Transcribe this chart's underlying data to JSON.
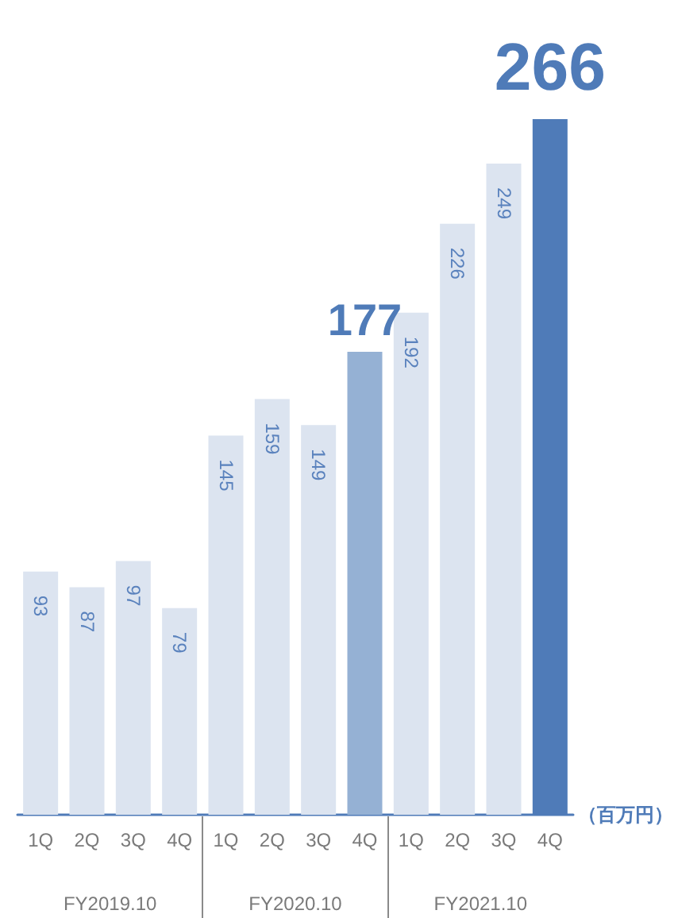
{
  "chart_data": {
    "type": "bar",
    "categories": [
      "1Q",
      "2Q",
      "3Q",
      "4Q",
      "1Q",
      "2Q",
      "3Q",
      "4Q",
      "1Q",
      "2Q",
      "3Q",
      "4Q"
    ],
    "values": [
      93,
      87,
      97,
      79,
      145,
      159,
      149,
      177,
      192,
      226,
      249,
      266
    ],
    "colors": [
      "#dce4f0",
      "#dce4f0",
      "#dce4f0",
      "#dce4f0",
      "#dce4f0",
      "#dce4f0",
      "#dce4f0",
      "#95b1d4",
      "#dce4f0",
      "#dce4f0",
      "#dce4f0",
      "#4f7bb8"
    ],
    "data_labels": true,
    "ylabel": "（百万円）",
    "annotations": [
      "FY2019.10",
      "FY2020.10",
      "FY2021.10"
    ]
  }
}
